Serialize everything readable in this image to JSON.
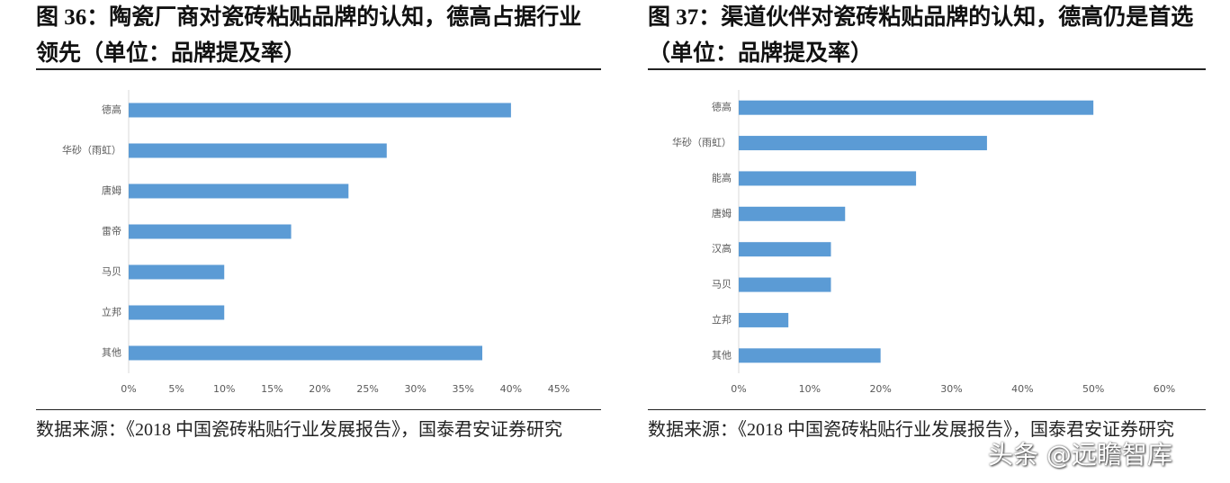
{
  "chart_data": [
    {
      "type": "bar",
      "orientation": "horizontal",
      "title": "图 36：陶瓷厂商对瓷砖粘贴品牌的认知，德高占据行业领先（单位：品牌提及率）",
      "categories": [
        "德高",
        "华砂（雨虹）",
        "唐姆",
        "雷帝",
        "马贝",
        "立邦",
        "其他"
      ],
      "values": [
        40,
        27,
        23,
        17,
        10,
        10,
        37
      ],
      "color": "#5b9bd5",
      "xlim": [
        0,
        45
      ],
      "xticks": [
        {
          "value": 0,
          "label": "0%"
        },
        {
          "value": 5,
          "label": "5%"
        },
        {
          "value": 10,
          "label": "10%"
        },
        {
          "value": 15,
          "label": "15%"
        },
        {
          "value": 20,
          "label": "20%"
        },
        {
          "value": 25,
          "label": "25%"
        },
        {
          "value": 30,
          "label": "30%"
        },
        {
          "value": 35,
          "label": "35%"
        },
        {
          "value": 40,
          "label": "40%"
        },
        {
          "value": 45,
          "label": "45%"
        }
      ],
      "grid": false,
      "source": "数据来源：《2018 中国瓷砖粘贴行业发展报告》，国泰君安证券研究"
    },
    {
      "type": "bar",
      "orientation": "horizontal",
      "title": "图 37：渠道伙伴对瓷砖粘贴品牌的认知，德高仍是首选（单位：品牌提及率）",
      "categories": [
        "德高",
        "华砂（雨虹）",
        "能高",
        "唐姆",
        "汉高",
        "马贝",
        "立邦",
        "其他"
      ],
      "values": [
        50,
        35,
        25,
        15,
        13,
        13,
        7,
        20
      ],
      "color": "#5b9bd5",
      "xlim": [
        0,
        60
      ],
      "xticks": [
        {
          "value": 0,
          "label": "0%"
        },
        {
          "value": 10,
          "label": "10%"
        },
        {
          "value": 20,
          "label": "20%"
        },
        {
          "value": 30,
          "label": "30%"
        },
        {
          "value": 40,
          "label": "40%"
        },
        {
          "value": 50,
          "label": "50%"
        },
        {
          "value": 60,
          "label": "60%"
        }
      ],
      "grid": false,
      "source": "数据来源：《2018 中国瓷砖粘贴行业发展报告》，国泰君安证券研究"
    }
  ],
  "watermark": "头条 @远瞻智库"
}
